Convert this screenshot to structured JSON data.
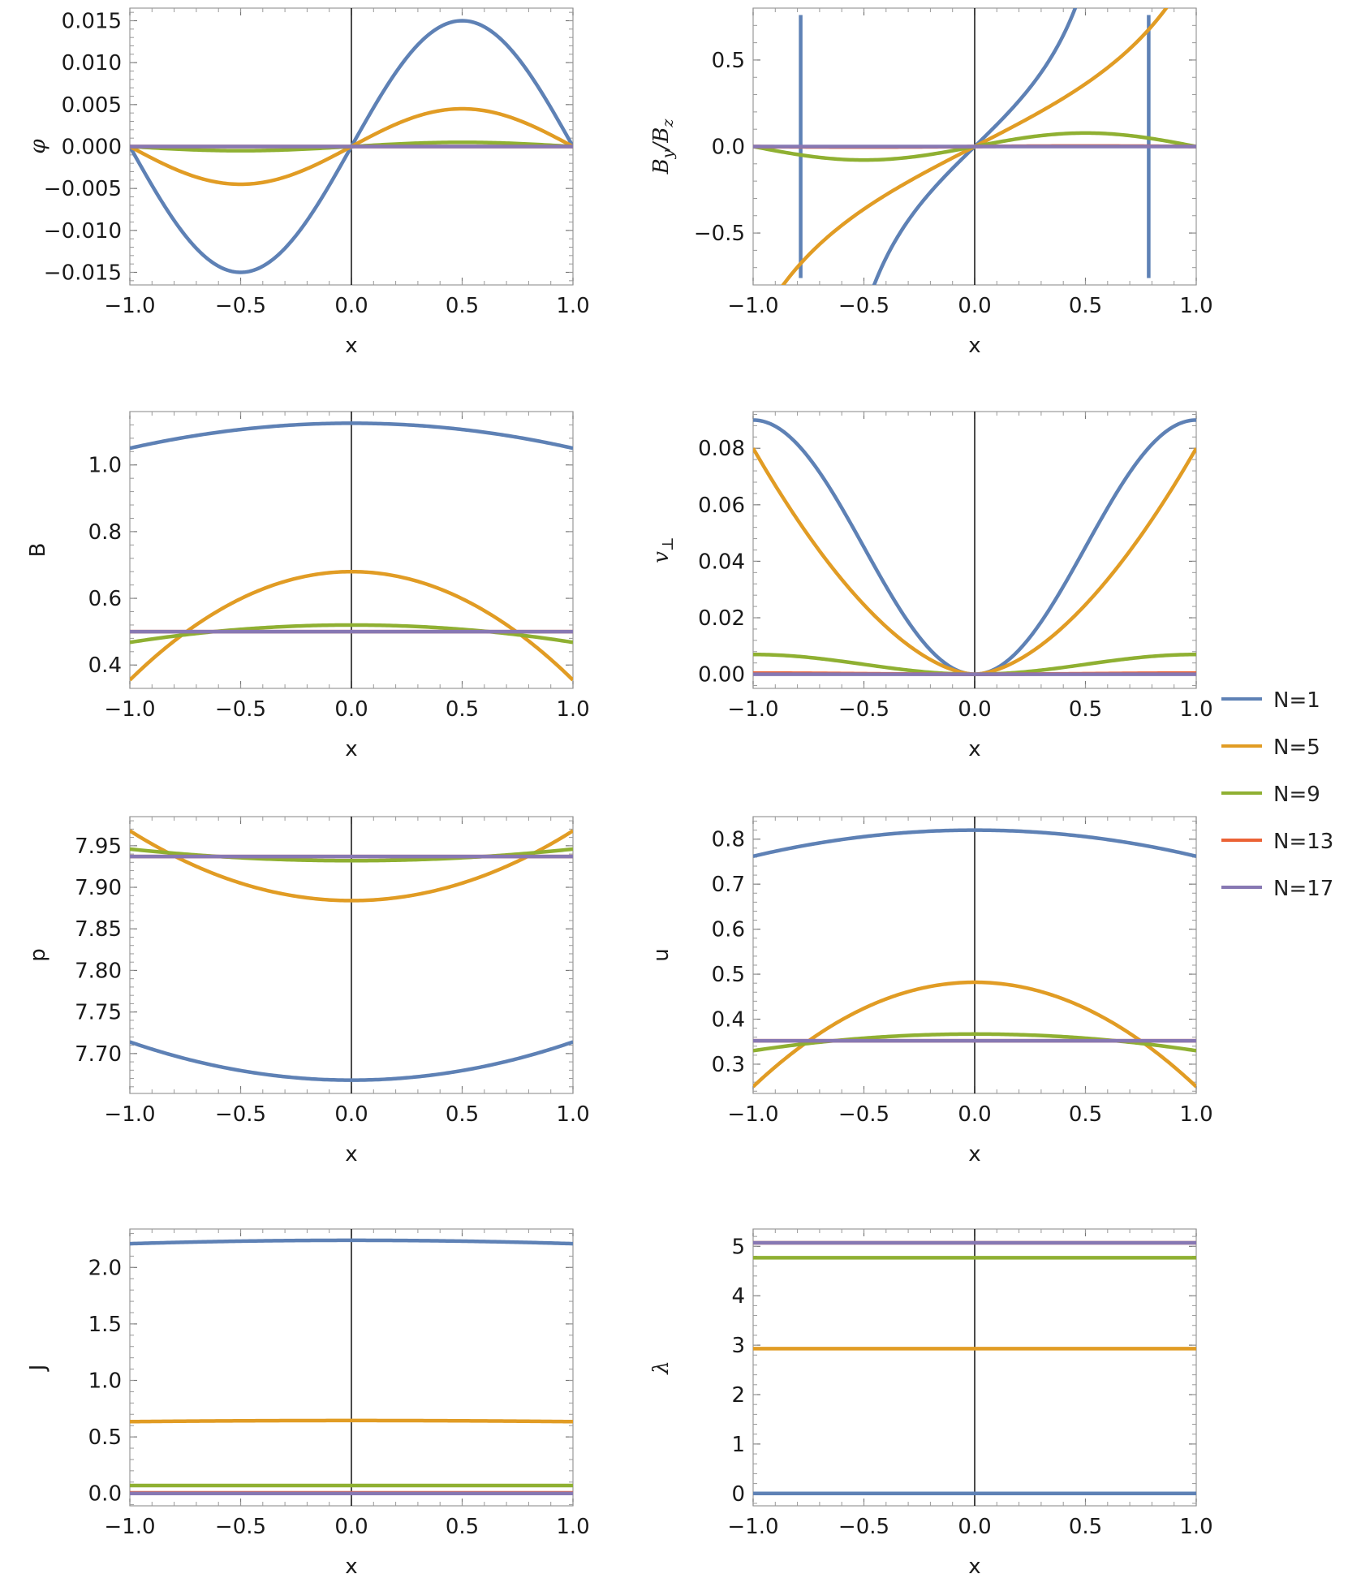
{
  "series_names": [
    "N=1",
    "N=5",
    "N=9",
    "N=13",
    "N=17"
  ],
  "series_colors": [
    "#5E81B5",
    "#E19C24",
    "#8FB032",
    "#EB6235",
    "#8778B3"
  ],
  "chart_data": [
    {
      "id": "phi",
      "type": "line",
      "ylabel": "φ",
      "xlabel": "x",
      "xlim": [
        -1.0,
        1.0
      ],
      "ylim": [
        -0.0165,
        0.0165
      ],
      "xticks": [
        "-1.0",
        "-0.5",
        "0.0",
        "0.5",
        "1.0"
      ],
      "yticks": [
        "-0.015",
        "-0.010",
        "-0.005",
        "0.000",
        "0.005",
        "0.010",
        "0.015"
      ],
      "series": [
        {
          "name": "N=1",
          "shape": "sine",
          "amp": 0.015
        },
        {
          "name": "N=5",
          "shape": "sine",
          "amp": 0.0045
        },
        {
          "name": "N=9",
          "shape": "sine",
          "amp": 0.0005
        },
        {
          "name": "N=13",
          "shape": "sine",
          "amp": 0.0
        },
        {
          "name": "N=17",
          "shape": "sine",
          "amp": 0.0
        }
      ]
    },
    {
      "id": "byBz",
      "type": "line",
      "ylabel": "By/Bz",
      "xlabel": "x",
      "xlim": [
        -1.0,
        1.0
      ],
      "ylim": [
        -0.8,
        0.8
      ],
      "xticks": [
        "-1.0",
        "-0.5",
        "0.0",
        "0.5",
        "1.0"
      ],
      "yticks": [
        "-0.5",
        "0.0",
        "0.5"
      ],
      "series": [
        {
          "name": "N=1",
          "shape": "tan",
          "k": 2.0
        },
        {
          "name": "N=5",
          "shape": "tan",
          "k": 1.05
        },
        {
          "name": "N=9",
          "shape": "sine",
          "amp": 0.078
        },
        {
          "name": "N=13",
          "shape": "sine",
          "amp": 0.003
        },
        {
          "name": "N=17",
          "shape": "sine",
          "amp": 0.0
        }
      ]
    },
    {
      "id": "B",
      "type": "line",
      "ylabel": "B",
      "xlabel": "x",
      "xlim": [
        -1.0,
        1.0
      ],
      "ylim": [
        0.33,
        1.16
      ],
      "xticks": [
        "-1.0",
        "-0.5",
        "0.0",
        "0.5",
        "1.0"
      ],
      "yticks": [
        "0.4",
        "0.6",
        "0.8",
        "1.0"
      ],
      "series": [
        {
          "name": "N=1",
          "shape": "quad",
          "center": 1.125,
          "edge": 1.05
        },
        {
          "name": "N=5",
          "shape": "quad",
          "center": 0.68,
          "edge": 0.355
        },
        {
          "name": "N=9",
          "shape": "quad",
          "center": 0.52,
          "edge": 0.468
        },
        {
          "name": "N=13",
          "shape": "quad",
          "center": 0.5,
          "edge": 0.5
        },
        {
          "name": "N=17",
          "shape": "quad",
          "center": 0.5,
          "edge": 0.5
        }
      ]
    },
    {
      "id": "vperp",
      "type": "line",
      "ylabel": "v⊥",
      "xlabel": "x",
      "xlim": [
        -1.0,
        1.0
      ],
      "ylim": [
        -0.005,
        0.093
      ],
      "xticks": [
        "-1.0",
        "-0.5",
        "0.0",
        "0.5",
        "1.0"
      ],
      "yticks": [
        "0.00",
        "0.02",
        "0.04",
        "0.06",
        "0.08"
      ],
      "series": [
        {
          "name": "N=1",
          "shape": "cosine",
          "amp": 0.09
        },
        {
          "name": "N=5",
          "shape": "power",
          "amp": 0.08,
          "p": 1.7
        },
        {
          "name": "N=9",
          "shape": "cosine",
          "amp": 0.007
        },
        {
          "name": "N=13",
          "shape": "cosine",
          "amp": 0.0004
        },
        {
          "name": "N=17",
          "shape": "cosine",
          "amp": 0.0
        }
      ]
    },
    {
      "id": "p",
      "type": "line",
      "ylabel": "p",
      "xlabel": "x",
      "xlim": [
        -1.0,
        1.0
      ],
      "ylim": [
        7.652,
        7.985
      ],
      "xticks": [
        "-1.0",
        "-0.5",
        "0.0",
        "0.5",
        "1.0"
      ],
      "yticks": [
        "7.70",
        "7.75",
        "7.80",
        "7.85",
        "7.90",
        "7.95"
      ],
      "series": [
        {
          "name": "N=1",
          "shape": "quad",
          "center": 7.668,
          "edge": 7.714
        },
        {
          "name": "N=5",
          "shape": "quad",
          "center": 7.884,
          "edge": 7.968
        },
        {
          "name": "N=9",
          "shape": "quad",
          "center": 7.932,
          "edge": 7.946
        },
        {
          "name": "N=13",
          "shape": "quad",
          "center": 7.937,
          "edge": 7.937
        },
        {
          "name": "N=17",
          "shape": "quad",
          "center": 7.937,
          "edge": 7.937
        }
      ]
    },
    {
      "id": "u",
      "type": "line",
      "ylabel": "u",
      "xlabel": "x",
      "xlim": [
        -1.0,
        1.0
      ],
      "ylim": [
        0.235,
        0.85
      ],
      "xticks": [
        "-1.0",
        "-0.5",
        "0.0",
        "0.5",
        "1.0"
      ],
      "yticks": [
        "0.3",
        "0.4",
        "0.5",
        "0.6",
        "0.7",
        "0.8"
      ],
      "series": [
        {
          "name": "N=1",
          "shape": "quad",
          "center": 0.82,
          "edge": 0.762
        },
        {
          "name": "N=5",
          "shape": "quad",
          "center": 0.482,
          "edge": 0.25
        },
        {
          "name": "N=9",
          "shape": "quad",
          "center": 0.367,
          "edge": 0.33
        },
        {
          "name": "N=13",
          "shape": "quad",
          "center": 0.352,
          "edge": 0.352
        },
        {
          "name": "N=17",
          "shape": "quad",
          "center": 0.352,
          "edge": 0.352
        }
      ]
    },
    {
      "id": "J",
      "type": "line",
      "ylabel": "J",
      "xlabel": "x",
      "xlim": [
        -1.0,
        1.0
      ],
      "ylim": [
        -0.11,
        2.34
      ],
      "xticks": [
        "-1.0",
        "-0.5",
        "0.0",
        "0.5",
        "1.0"
      ],
      "yticks": [
        "0.0",
        "0.5",
        "1.0",
        "1.5",
        "2.0"
      ],
      "series": [
        {
          "name": "N=1",
          "shape": "quad",
          "center": 2.24,
          "edge": 2.21
        },
        {
          "name": "N=5",
          "shape": "quad",
          "center": 0.645,
          "edge": 0.635
        },
        {
          "name": "N=9",
          "shape": "quad",
          "center": 0.07,
          "edge": 0.07
        },
        {
          "name": "N=13",
          "shape": "quad",
          "center": 0.005,
          "edge": 0.005
        },
        {
          "name": "N=17",
          "shape": "quad",
          "center": 0.0,
          "edge": 0.0
        }
      ]
    },
    {
      "id": "lambda",
      "type": "line",
      "ylabel": "λ",
      "xlabel": "x",
      "xlim": [
        -1.0,
        1.0
      ],
      "ylim": [
        -0.25,
        5.35
      ],
      "xticks": [
        "-1.0",
        "-0.5",
        "0.0",
        "0.5",
        "1.0"
      ],
      "yticks": [
        "0",
        "1",
        "2",
        "3",
        "4",
        "5"
      ],
      "series": [
        {
          "name": "N=1",
          "shape": "quad",
          "center": 0.0,
          "edge": 0.0
        },
        {
          "name": "N=5",
          "shape": "quad",
          "center": 2.93,
          "edge": 2.93
        },
        {
          "name": "N=9",
          "shape": "quad",
          "center": 4.77,
          "edge": 4.77
        },
        {
          "name": "N=13",
          "shape": "quad",
          "center": 5.07,
          "edge": 5.07
        },
        {
          "name": "N=17",
          "shape": "quad",
          "center": 5.07,
          "edge": 5.07
        }
      ]
    }
  ]
}
